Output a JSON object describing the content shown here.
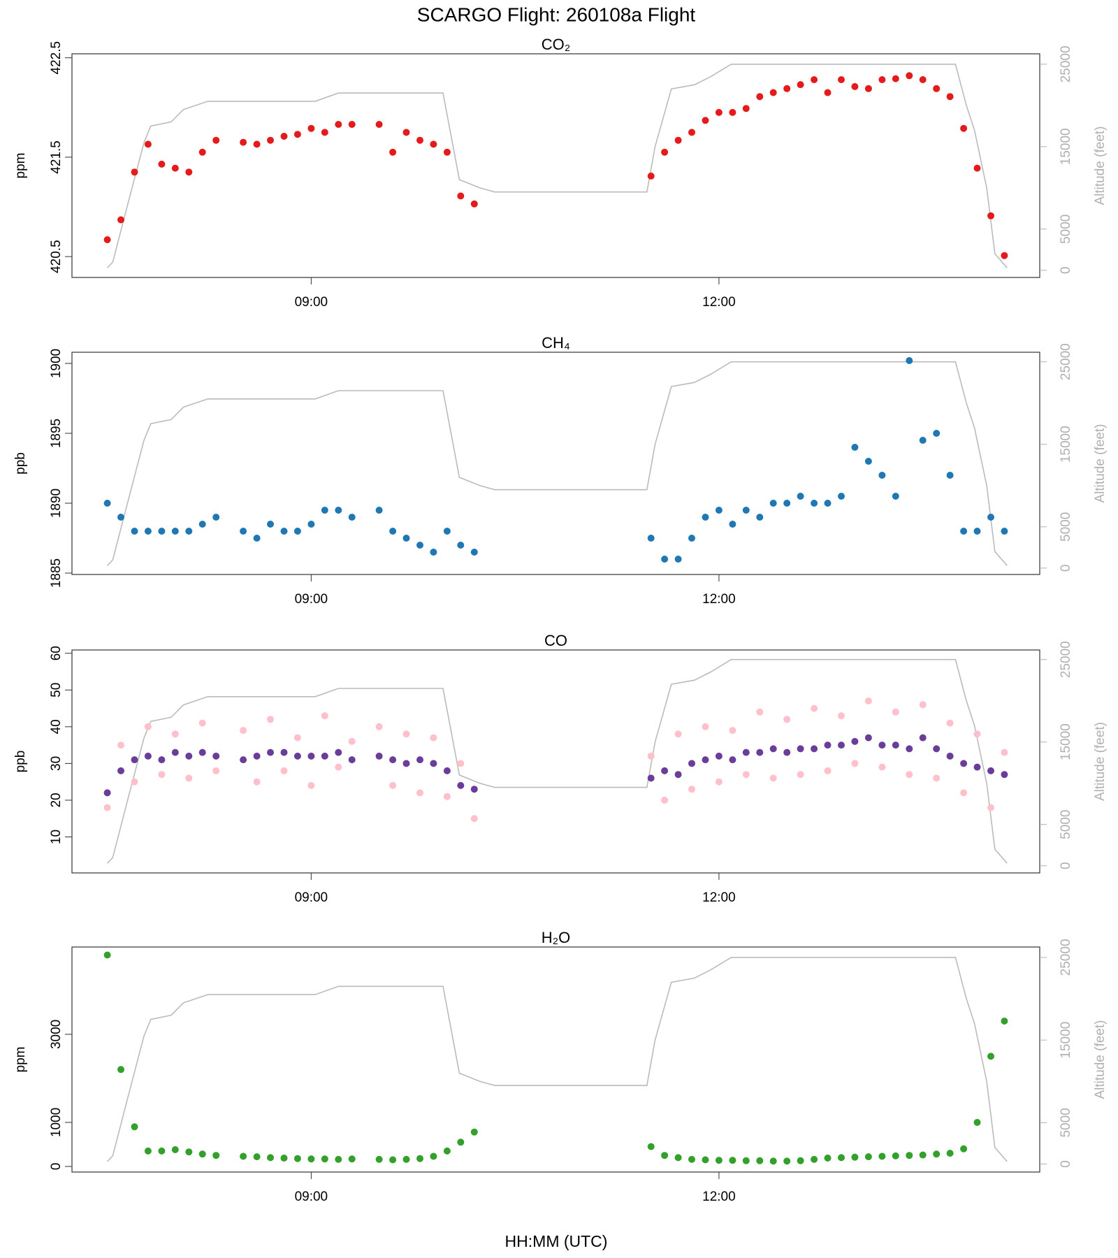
{
  "title": "SCARGO Flight: 260108a  Flight",
  "xlabel": "HH:MM (UTC)",
  "chart_data": [
    {
      "type": "scatter",
      "title": "CO₂",
      "ylabel": "ppm",
      "y2label": "Altitude (feet)",
      "xlim": [
        7.24,
        14.36
      ],
      "xticks": [
        {
          "value": 9,
          "label": "09:00"
        },
        {
          "value": 12,
          "label": "12:00"
        }
      ],
      "ylim": [
        420.29,
        422.54
      ],
      "yticks": [
        420.5,
        421.5,
        422.5
      ],
      "y2lim": [
        -870,
        26260
      ],
      "y2ticks": [
        0,
        5000,
        15000,
        25000
      ],
      "x": [
        7.5,
        7.6,
        7.7,
        7.8,
        7.9,
        8.0,
        8.1,
        8.2,
        8.3,
        8.4,
        8.5,
        8.6,
        8.7,
        8.8,
        8.9,
        9.0,
        9.1,
        9.2,
        9.3,
        9.4,
        9.5,
        9.6,
        9.7,
        9.8,
        9.9,
        10.0,
        10.1,
        10.2,
        10.3,
        10.4,
        10.5,
        10.6,
        10.7,
        10.8,
        10.9,
        11.0,
        11.1,
        11.2,
        11.3,
        11.4,
        11.5,
        11.6,
        11.7,
        11.8,
        11.9,
        12.0,
        12.1,
        12.2,
        12.3,
        12.4,
        12.5,
        12.6,
        12.7,
        12.8,
        12.9,
        13.0,
        13.1,
        13.2,
        13.3,
        13.4,
        13.5,
        13.6,
        13.7,
        13.8,
        13.9,
        14.0,
        14.1
      ],
      "series": [
        {
          "color": "#e41a1c",
          "values": [
            420.67,
            420.87,
            421.35,
            421.63,
            421.43,
            421.39,
            421.35,
            421.55,
            421.67,
            null,
            421.65,
            421.63,
            421.67,
            421.71,
            421.73,
            421.79,
            421.75,
            421.83,
            421.83,
            null,
            421.83,
            421.55,
            421.75,
            421.67,
            421.63,
            421.55,
            421.11,
            421.03,
            null,
            null,
            null,
            null,
            null,
            null,
            null,
            null,
            null,
            null,
            null,
            null,
            421.31,
            421.55,
            421.67,
            421.75,
            421.87,
            421.95,
            421.95,
            421.99,
            422.11,
            422.15,
            422.19,
            422.23,
            422.28,
            422.15,
            422.28,
            422.21,
            422.19,
            422.28,
            422.29,
            422.32,
            422.28,
            422.19,
            422.11,
            421.79,
            421.39,
            420.91,
            420.51
          ]
        },
        {
          "type": "line",
          "axis": "y2",
          "color": "#bbbbbb",
          "x": [
            7.5,
            7.54,
            7.65,
            7.77,
            7.82,
            7.97,
            8.06,
            8.24,
            8.4,
            9.03,
            9.2,
            9.97,
            10.09,
            10.24,
            10.35,
            11.47,
            11.53,
            11.65,
            11.82,
            11.94,
            12.09,
            13.74,
            13.82,
            13.88,
            13.97,
            14.03,
            14.12
          ],
          "values": [
            300,
            1000,
            8000,
            15500,
            17500,
            18000,
            19500,
            20500,
            20500,
            20500,
            21500,
            21500,
            11000,
            10000,
            9500,
            9500,
            15000,
            22000,
            22500,
            23500,
            25000,
            25000,
            20000,
            17000,
            10000,
            2000,
            300
          ]
        }
      ]
    },
    {
      "type": "scatter",
      "title": "CH₄",
      "ylabel": "ppb",
      "y2label": "Altitude (feet)",
      "xlim": [
        7.24,
        14.36
      ],
      "xticks": [
        {
          "value": 9,
          "label": "09:00"
        },
        {
          "value": 12,
          "label": "12:00"
        }
      ],
      "ylim": [
        1884.9,
        1900.8
      ],
      "yticks": [
        1885,
        1890,
        1895,
        1900
      ],
      "y2lim": [
        -775,
        26160
      ],
      "y2ticks": [
        0,
        5000,
        15000,
        25000
      ],
      "x": [
        7.5,
        7.6,
        7.7,
        7.8,
        7.9,
        8.0,
        8.1,
        8.2,
        8.3,
        8.4,
        8.5,
        8.6,
        8.7,
        8.8,
        8.9,
        9.0,
        9.1,
        9.2,
        9.3,
        9.4,
        9.5,
        9.6,
        9.7,
        9.8,
        9.9,
        10.0,
        10.1,
        10.2,
        10.3,
        10.4,
        10.5,
        10.6,
        10.7,
        10.8,
        10.9,
        11.0,
        11.1,
        11.2,
        11.3,
        11.4,
        11.5,
        11.6,
        11.7,
        11.8,
        11.9,
        12.0,
        12.1,
        12.2,
        12.3,
        12.4,
        12.5,
        12.6,
        12.7,
        12.8,
        12.9,
        13.0,
        13.1,
        13.2,
        13.3,
        13.4,
        13.5,
        13.6,
        13.7,
        13.8,
        13.9,
        14.0,
        14.1
      ],
      "series": [
        {
          "color": "#1f78b4",
          "values": [
            1890,
            1889,
            1888,
            1888,
            1888,
            1888,
            1888,
            1888.5,
            1889,
            null,
            1888,
            1887.5,
            1888.5,
            1888,
            1888,
            1888.5,
            1889.5,
            1889.5,
            1889,
            null,
            1889.5,
            1888,
            1887.5,
            1887,
            1886.5,
            1888,
            1887,
            1886.5,
            null,
            null,
            null,
            null,
            null,
            null,
            null,
            null,
            null,
            null,
            null,
            null,
            1887.5,
            1886,
            1886,
            1887.5,
            1889,
            1889.5,
            1888.5,
            1889.5,
            1889,
            1890,
            1890,
            1890.5,
            1890,
            1890,
            1890.5,
            1894,
            1893,
            1892,
            1890.5,
            1900.2,
            1894.5,
            1895,
            1892,
            1888,
            1888,
            1889,
            1888
          ]
        },
        {
          "type": "line",
          "axis": "y2",
          "color": "#bbbbbb",
          "x": [
            7.5,
            7.54,
            7.65,
            7.77,
            7.82,
            7.97,
            8.06,
            8.24,
            8.4,
            9.03,
            9.2,
            9.97,
            10.09,
            10.24,
            10.35,
            11.47,
            11.53,
            11.65,
            11.82,
            11.94,
            12.09,
            13.74,
            13.82,
            13.88,
            13.97,
            14.03,
            14.12
          ],
          "values": [
            300,
            1000,
            8000,
            15500,
            17500,
            18000,
            19500,
            20500,
            20500,
            20500,
            21500,
            21500,
            11000,
            10000,
            9500,
            9500,
            15000,
            22000,
            22500,
            23500,
            25000,
            25000,
            20000,
            17000,
            10000,
            2000,
            300
          ]
        }
      ]
    },
    {
      "type": "scatter",
      "title": "CO",
      "ylabel": "ppb",
      "y2label": "Altitude (feet)",
      "xlim": [
        7.24,
        14.36
      ],
      "xticks": [
        {
          "value": 9,
          "label": "09:00"
        },
        {
          "value": 12,
          "label": "12:00"
        }
      ],
      "ylim": [
        0.2,
        60.9
      ],
      "yticks": [
        10,
        20,
        30,
        40,
        50,
        60
      ],
      "y2lim": [
        -870,
        26160
      ],
      "y2ticks": [
        0,
        5000,
        15000,
        25000
      ],
      "x": [
        7.5,
        7.6,
        7.7,
        7.8,
        7.9,
        8.0,
        8.1,
        8.2,
        8.3,
        8.4,
        8.5,
        8.6,
        8.7,
        8.8,
        8.9,
        9.0,
        9.1,
        9.2,
        9.3,
        9.4,
        9.5,
        9.6,
        9.7,
        9.8,
        9.9,
        10.0,
        10.1,
        10.2,
        10.3,
        10.4,
        10.5,
        10.6,
        10.7,
        10.8,
        10.9,
        11.0,
        11.1,
        11.2,
        11.3,
        11.4,
        11.5,
        11.6,
        11.7,
        11.8,
        11.9,
        12.0,
        12.1,
        12.2,
        12.3,
        12.4,
        12.5,
        12.6,
        12.7,
        12.8,
        12.9,
        13.0,
        13.1,
        13.2,
        13.3,
        13.4,
        13.5,
        13.6,
        13.7,
        13.8,
        13.9,
        14.0,
        14.1
      ],
      "series": [
        {
          "color": "#ffc0cb",
          "values": [
            18,
            35,
            25,
            40,
            27,
            38,
            26,
            41,
            28,
            null,
            39,
            25,
            42,
            28,
            37,
            24,
            43,
            29,
            36,
            null,
            40,
            24,
            38,
            22,
            37,
            21,
            30,
            15,
            null,
            null,
            null,
            null,
            null,
            null,
            null,
            null,
            null,
            null,
            null,
            null,
            32,
            20,
            38,
            23,
            40,
            25,
            39,
            27,
            44,
            26,
            42,
            27,
            45,
            28,
            43,
            30,
            47,
            29,
            44,
            27,
            46,
            26,
            41,
            22,
            38,
            18,
            33
          ]
        },
        {
          "color": "#6a3d9a",
          "values": [
            22,
            28,
            31,
            32,
            31,
            33,
            32,
            33,
            32,
            null,
            31,
            32,
            33,
            33,
            32,
            32,
            32,
            33,
            31,
            null,
            32,
            31,
            30,
            31,
            30,
            28,
            24,
            23,
            null,
            null,
            null,
            null,
            null,
            null,
            null,
            null,
            null,
            null,
            null,
            null,
            26,
            28,
            27,
            30,
            31,
            32,
            31,
            33,
            33,
            34,
            33,
            34,
            34,
            35,
            35,
            36,
            37,
            35,
            35,
            34,
            37,
            34,
            32,
            30,
            29,
            28,
            27
          ]
        },
        {
          "type": "line",
          "axis": "y2",
          "color": "#bbbbbb",
          "x": [
            7.5,
            7.54,
            7.65,
            7.77,
            7.82,
            7.97,
            8.06,
            8.24,
            8.4,
            9.03,
            9.2,
            9.97,
            10.09,
            10.24,
            10.35,
            11.47,
            11.53,
            11.65,
            11.82,
            11.94,
            12.09,
            13.74,
            13.82,
            13.88,
            13.97,
            14.03,
            14.12
          ],
          "values": [
            300,
            1000,
            8000,
            15500,
            17500,
            18000,
            19500,
            20500,
            20500,
            20500,
            21500,
            21500,
            11000,
            10000,
            9500,
            9500,
            15000,
            22000,
            22500,
            23500,
            25000,
            25000,
            20000,
            17000,
            10000,
            2000,
            300
          ]
        }
      ]
    },
    {
      "type": "scatter",
      "title": "H₂O",
      "ylabel": "ppm",
      "y2label": "Altitude (feet)",
      "xlim": [
        7.24,
        14.36
      ],
      "xticks": [
        {
          "value": 9,
          "label": "09:00"
        },
        {
          "value": 12,
          "label": "12:00"
        }
      ],
      "ylim": [
        -127,
        4982
      ],
      "yticks": [
        0,
        1000,
        3000
      ],
      "y2lim": [
        -970,
        26260
      ],
      "y2ticks": [
        0,
        5000,
        15000,
        25000
      ],
      "x": [
        7.5,
        7.6,
        7.7,
        7.8,
        7.9,
        8.0,
        8.1,
        8.2,
        8.3,
        8.4,
        8.5,
        8.6,
        8.7,
        8.8,
        8.9,
        9.0,
        9.1,
        9.2,
        9.3,
        9.4,
        9.5,
        9.6,
        9.7,
        9.8,
        9.9,
        10.0,
        10.1,
        10.2,
        10.3,
        10.4,
        10.5,
        10.6,
        10.7,
        10.8,
        10.9,
        11.0,
        11.1,
        11.2,
        11.3,
        11.4,
        11.5,
        11.6,
        11.7,
        11.8,
        11.9,
        12.0,
        12.1,
        12.2,
        12.3,
        12.4,
        12.5,
        12.6,
        12.7,
        12.8,
        12.9,
        13.0,
        13.1,
        13.2,
        13.3,
        13.4,
        13.5,
        13.6,
        13.7,
        13.8,
        13.9,
        14.0,
        14.1
      ],
      "series": [
        {
          "color": "#33a02c",
          "values": [
            4800,
            2200,
            900,
            350,
            350,
            380,
            330,
            280,
            250,
            null,
            230,
            220,
            200,
            190,
            180,
            170,
            170,
            160,
            170,
            null,
            160,
            150,
            160,
            180,
            230,
            350,
            550,
            780,
            null,
            null,
            null,
            null,
            null,
            null,
            null,
            null,
            null,
            null,
            null,
            null,
            450,
            250,
            200,
            160,
            150,
            140,
            140,
            130,
            130,
            120,
            120,
            130,
            160,
            190,
            200,
            210,
            220,
            230,
            240,
            250,
            260,
            280,
            300,
            400,
            1000,
            2500,
            3300
          ]
        },
        {
          "type": "line",
          "axis": "y2",
          "color": "#bbbbbb",
          "x": [
            7.5,
            7.54,
            7.65,
            7.77,
            7.82,
            7.97,
            8.06,
            8.24,
            8.4,
            9.03,
            9.2,
            9.97,
            10.09,
            10.24,
            10.35,
            11.47,
            11.53,
            11.65,
            11.82,
            11.94,
            12.09,
            13.74,
            13.82,
            13.88,
            13.97,
            14.03,
            14.12
          ],
          "values": [
            300,
            1000,
            8000,
            15500,
            17500,
            18000,
            19500,
            20500,
            20500,
            20500,
            21500,
            21500,
            11000,
            10000,
            9500,
            9500,
            15000,
            22000,
            22500,
            23500,
            25000,
            25000,
            20000,
            17000,
            10000,
            2000,
            300
          ]
        }
      ]
    }
  ]
}
